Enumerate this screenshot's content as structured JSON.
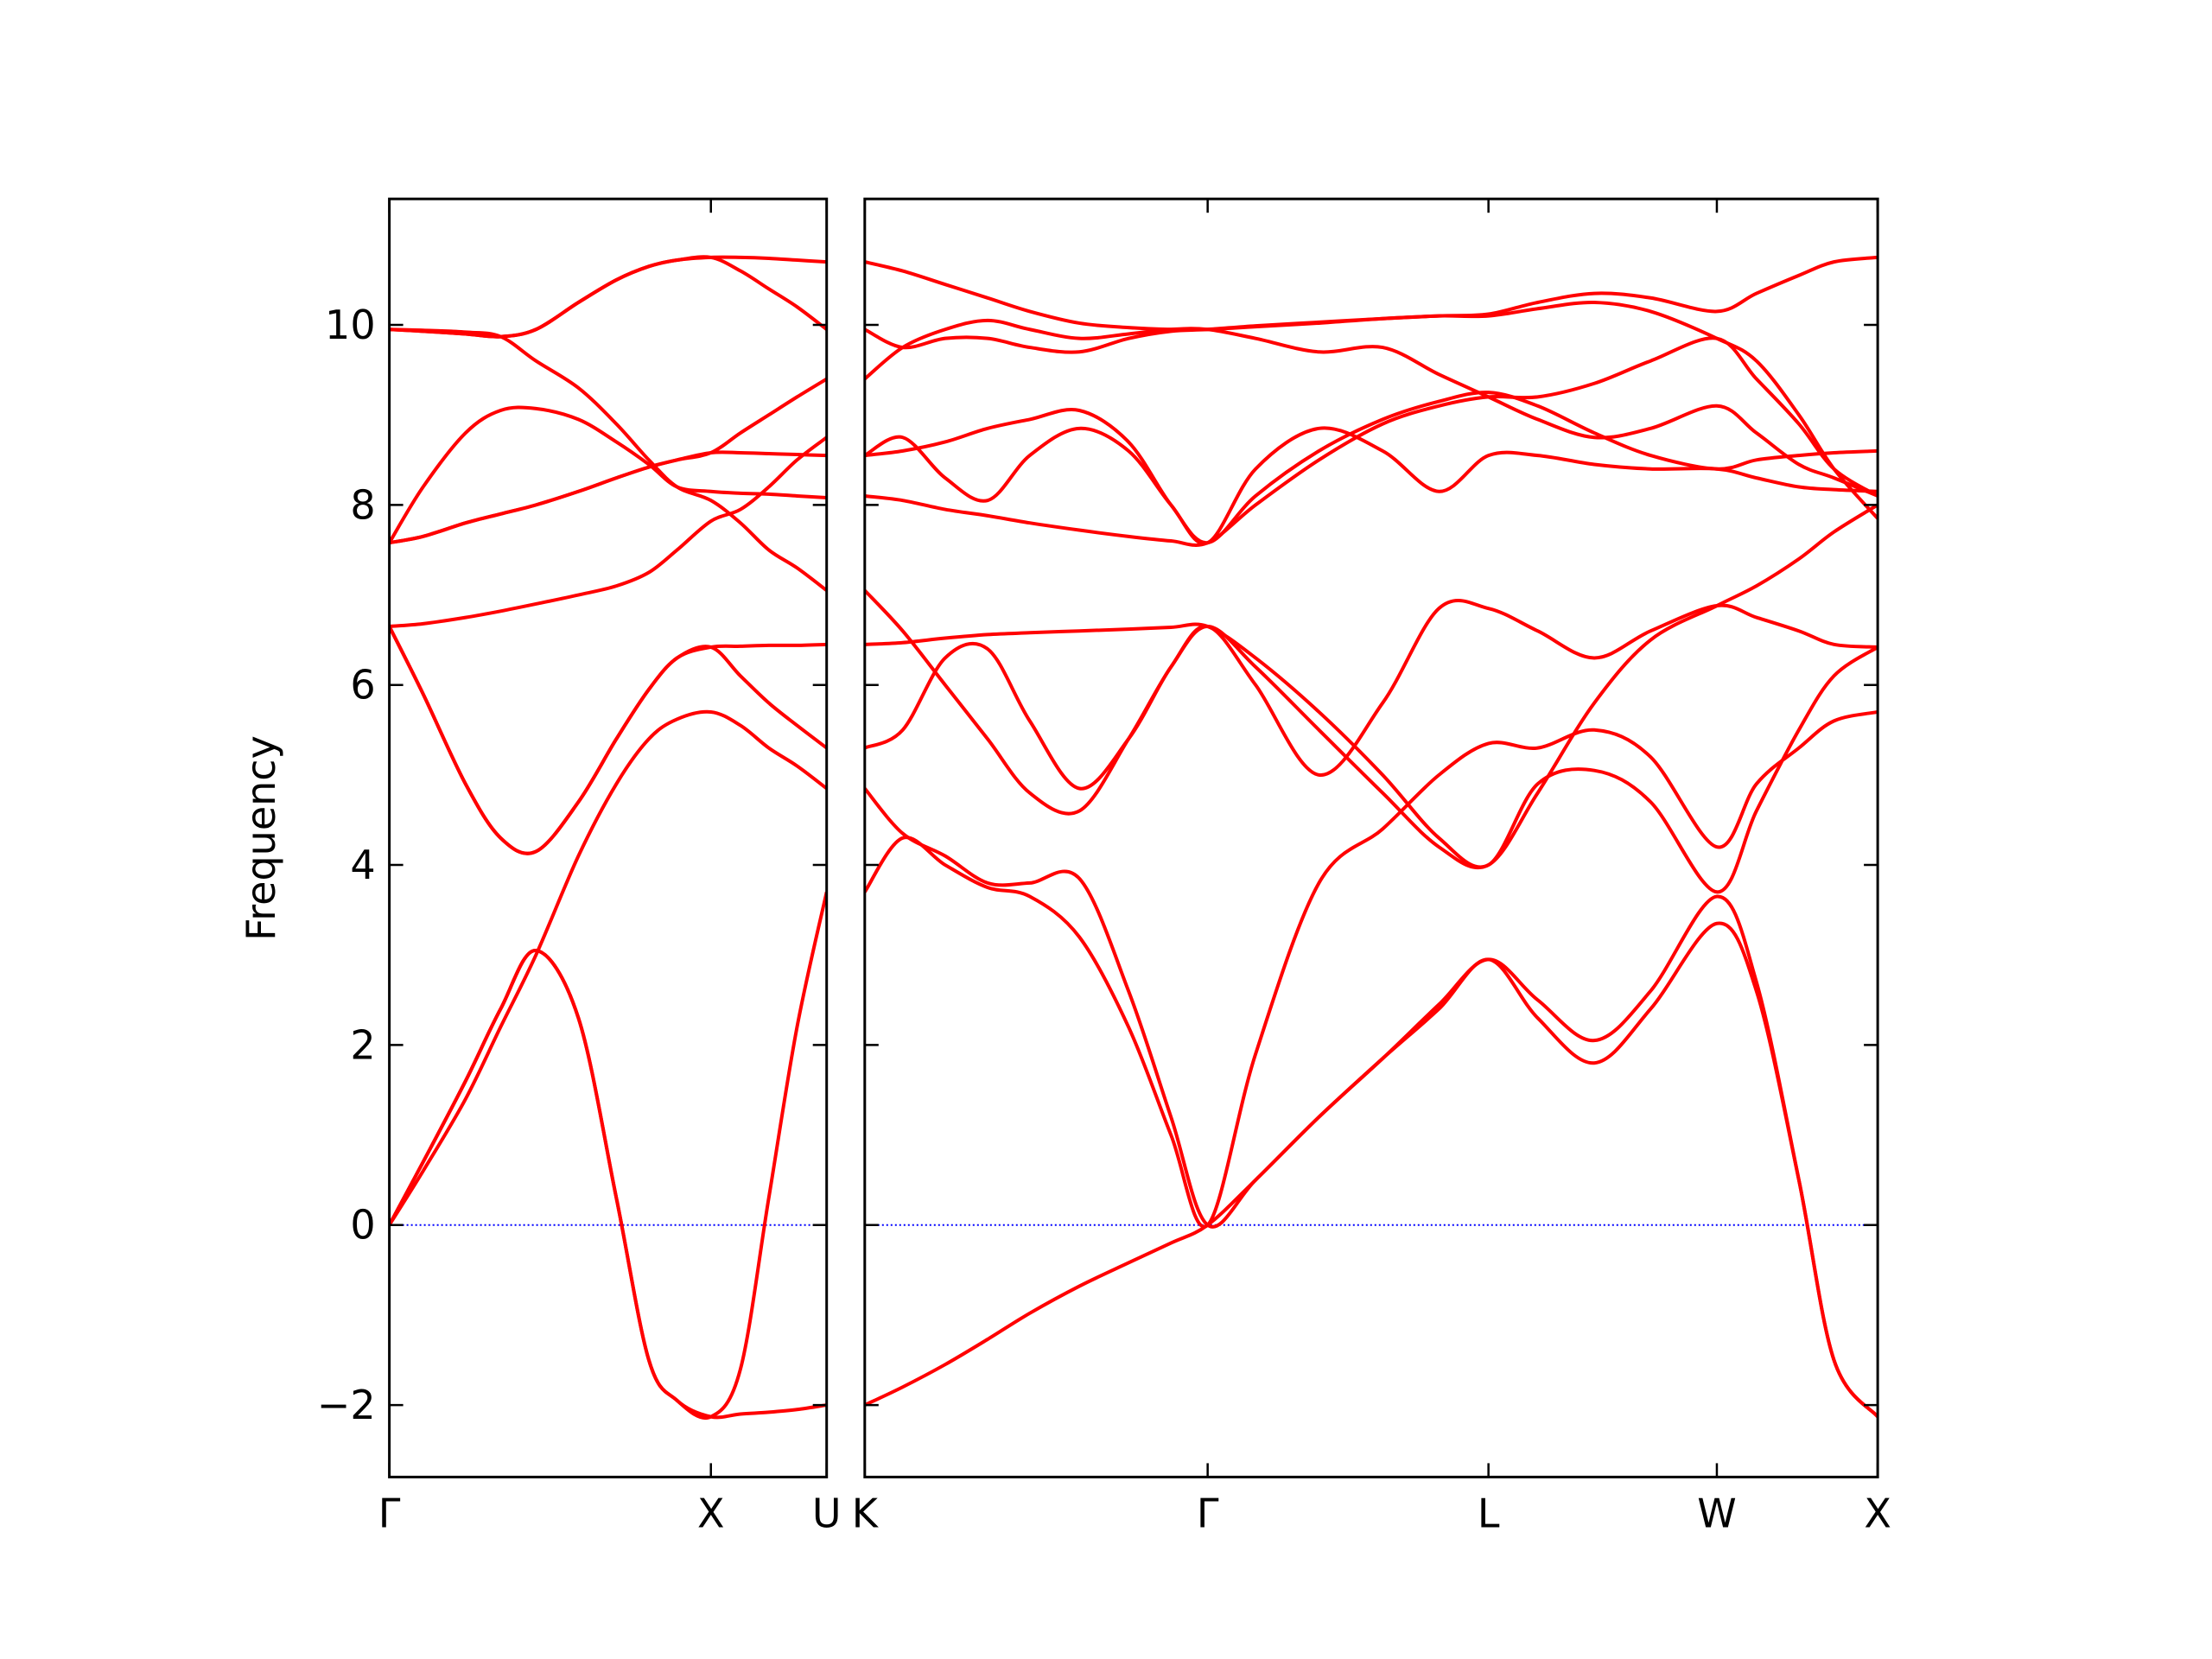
{
  "chart_data": [
    {
      "type": "line",
      "ylabel": "Frequency",
      "color": "#ff0000",
      "hline_color": "#0000ff",
      "hlines": [
        0
      ],
      "xlim": [
        0,
        1.36
      ],
      "ylim": [
        -2.8,
        11.4
      ],
      "xticks": [
        {
          "value": 0,
          "label": "Γ"
        },
        {
          "value": 1,
          "label": "X"
        },
        {
          "value": 1.36,
          "label": "U"
        }
      ],
      "yticks": [
        {
          "value": -2,
          "label": "−2"
        },
        0,
        2,
        4,
        6,
        8,
        10
      ],
      "show_ytick_labels": true,
      "x": [
        0,
        0.105,
        0.237,
        0.346,
        0.456,
        0.588,
        0.706,
        0.807,
        0.895,
        1.0,
        1.092,
        1.18,
        1.268,
        1.36
      ],
      "series": [
        {
          "values": [
            0,
            0.7,
            1.6,
            2.4,
            3.05,
            2.3,
            0.3,
            -1.5,
            -1.95,
            -2.13,
            -2.1,
            -2.08,
            -2.05,
            -2.0
          ]
        },
        {
          "values": [
            0,
            0.6,
            1.4,
            2.2,
            3.0,
            4.1,
            4.9,
            5.4,
            5.62,
            5.7,
            5.55,
            5.3,
            5.1,
            4.85
          ]
        },
        {
          "values": [
            0,
            0.7,
            1.6,
            2.4,
            3.05,
            2.3,
            0.3,
            -1.5,
            -1.95,
            -2.13,
            -1.6,
            0.3,
            2.2,
            3.7
          ]
        },
        {
          "values": [
            6.65,
            5.9,
            4.9,
            4.3,
            4.15,
            4.7,
            5.4,
            5.95,
            6.3,
            6.42,
            6.1,
            5.8,
            5.55,
            5.3
          ]
        },
        {
          "values": [
            6.65,
            6.68,
            6.75,
            6.82,
            6.9,
            7.0,
            7.1,
            7.25,
            7.5,
            7.82,
            7.95,
            8.2,
            8.5,
            8.75
          ]
        },
        {
          "values": [
            6.65,
            5.9,
            4.9,
            4.3,
            4.15,
            4.7,
            5.4,
            5.95,
            6.3,
            6.42,
            6.43,
            6.44,
            6.44,
            6.45
          ]
        },
        {
          "values": [
            7.58,
            8.2,
            8.8,
            9.05,
            9.07,
            8.95,
            8.7,
            8.45,
            8.2,
            8.15,
            8.13,
            8.12,
            8.1,
            8.08
          ]
        },
        {
          "values": [
            7.58,
            7.65,
            7.8,
            7.9,
            8.0,
            8.15,
            8.3,
            8.42,
            8.5,
            8.58,
            8.58,
            8.57,
            8.56,
            8.55
          ]
        },
        {
          "values": [
            9.95,
            9.94,
            9.92,
            9.87,
            9.6,
            9.3,
            8.9,
            8.5,
            8.2,
            8.05,
            7.8,
            7.5,
            7.3,
            7.05
          ]
        },
        {
          "values": [
            9.95,
            9.93,
            9.9,
            9.87,
            9.95,
            10.25,
            10.5,
            10.65,
            10.72,
            10.75,
            10.75,
            10.74,
            10.72,
            10.7
          ]
        },
        {
          "values": [
            9.95,
            9.93,
            9.9,
            9.87,
            9.95,
            10.25,
            10.5,
            10.65,
            10.72,
            10.75,
            10.6,
            10.4,
            10.2,
            9.95
          ]
        },
        {
          "values": [
            7.58,
            7.65,
            7.8,
            7.9,
            8.0,
            8.15,
            8.3,
            8.42,
            8.5,
            8.58,
            8.8,
            9.0,
            9.2,
            9.4
          ]
        }
      ]
    },
    {
      "type": "line",
      "color": "#ff0000",
      "hline_color": "#0000ff",
      "hlines": [
        0
      ],
      "xlim": [
        0,
        3.149
      ],
      "ylim": [
        -2.8,
        11.4
      ],
      "xticks": [
        {
          "value": 0,
          "label": "K"
        },
        {
          "value": 1.066,
          "label": "Γ"
        },
        {
          "value": 1.939,
          "label": "L"
        },
        {
          "value": 2.649,
          "label": "W"
        },
        {
          "value": 3.149,
          "label": "X"
        }
      ],
      "yticks": [
        -2,
        0,
        2,
        4,
        6,
        8,
        10
      ],
      "show_ytick_labels": false,
      "x": [
        0,
        0.118,
        0.25,
        0.382,
        0.513,
        0.667,
        0.82,
        0.952,
        1.066,
        1.215,
        1.412,
        1.61,
        1.785,
        1.939,
        2.092,
        2.268,
        2.443,
        2.649,
        2.772,
        2.904,
        3.013,
        3.149
      ],
      "series": [
        {
          "values": [
            -2.0,
            -1.8,
            -1.55,
            -1.27,
            -0.98,
            -0.68,
            -0.42,
            -0.2,
            0,
            0.5,
            1.2,
            1.85,
            2.4,
            2.95,
            2.3,
            1.8,
            2.4,
            3.35,
            2.6,
            0.5,
            -1.5,
            -2.13
          ]
        },
        {
          "values": [
            3.7,
            4.3,
            4.0,
            3.75,
            3.65,
            3.2,
            2.2,
            1.0,
            0,
            1.9,
            3.8,
            4.4,
            5.0,
            5.35,
            5.3,
            5.5,
            5.2,
            4.2,
            4.9,
            5.3,
            5.6,
            5.7
          ]
        },
        {
          "values": [
            4.85,
            4.35,
            4.1,
            3.8,
            3.8,
            3.85,
            2.6,
            1.2,
            0,
            0.5,
            1.2,
            1.85,
            2.45,
            2.95,
            2.5,
            2.05,
            2.6,
            3.65,
            2.7,
            0.5,
            -1.5,
            -2.13
          ]
        },
        {
          "values": [
            5.3,
            5.5,
            6.3,
            6.4,
            5.6,
            4.85,
            5.4,
            6.2,
            6.65,
            6.0,
            5.0,
            5.8,
            6.85,
            6.85,
            6.6,
            6.3,
            6.6,
            6.88,
            6.75,
            6.6,
            6.45,
            6.42
          ]
        },
        {
          "values": [
            6.45,
            6.47,
            6.52,
            6.56,
            6.58,
            6.6,
            6.62,
            6.64,
            6.65,
            6.3,
            5.7,
            5.0,
            4.3,
            4.0,
            4.9,
            5.05,
            4.7,
            3.7,
            4.6,
            5.5,
            6.1,
            6.42
          ]
        },
        {
          "values": [
            7.05,
            6.6,
            6.0,
            5.4,
            4.8,
            4.6,
            5.4,
            6.2,
            6.65,
            6.2,
            5.5,
            4.8,
            4.2,
            4.0,
            4.8,
            5.8,
            6.5,
            6.88,
            7.1,
            7.4,
            7.7,
            8.0
          ]
        },
        {
          "values": [
            8.1,
            8.05,
            7.95,
            7.88,
            7.8,
            7.72,
            7.65,
            7.6,
            7.58,
            8.0,
            8.5,
            8.9,
            9.1,
            9.2,
            9.2,
            9.35,
            9.6,
            9.85,
            9.4,
            8.9,
            8.4,
            8.1
          ]
        },
        {
          "values": [
            8.55,
            8.75,
            8.3,
            8.05,
            8.55,
            8.85,
            8.6,
            8.0,
            7.58,
            8.4,
            8.85,
            8.6,
            8.15,
            8.55,
            8.55,
            8.45,
            8.4,
            8.4,
            8.3,
            8.2,
            8.17,
            8.15
          ]
        },
        {
          "values": [
            9.4,
            9.75,
            9.95,
            10.05,
            9.95,
            9.85,
            9.9,
            9.95,
            9.95,
            9.85,
            9.7,
            9.75,
            9.45,
            9.2,
            8.95,
            8.75,
            8.85,
            9.1,
            8.8,
            8.45,
            8.3,
            8.1
          ]
        },
        {
          "values": [
            9.95,
            9.75,
            9.85,
            9.85,
            9.75,
            9.7,
            9.85,
            9.93,
            9.95,
            9.99,
            10.03,
            10.07,
            10.1,
            10.1,
            10.18,
            10.25,
            10.15,
            9.85,
            9.6,
            9.0,
            8.4,
            7.85
          ]
        },
        {
          "values": [
            10.7,
            10.6,
            10.45,
            10.3,
            10.15,
            10.02,
            9.97,
            9.95,
            9.95,
            9.98,
            10.02,
            10.07,
            10.1,
            10.12,
            10.25,
            10.35,
            10.3,
            10.15,
            10.35,
            10.55,
            10.7,
            10.75
          ]
        },
        {
          "values": [
            8.55,
            8.6,
            8.7,
            8.85,
            8.95,
            9.05,
            8.7,
            8.0,
            7.58,
            8.1,
            8.6,
            8.95,
            9.15,
            9.25,
            9.1,
            8.8,
            8.55,
            8.4,
            8.5,
            8.55,
            8.58,
            8.6
          ]
        }
      ]
    }
  ]
}
